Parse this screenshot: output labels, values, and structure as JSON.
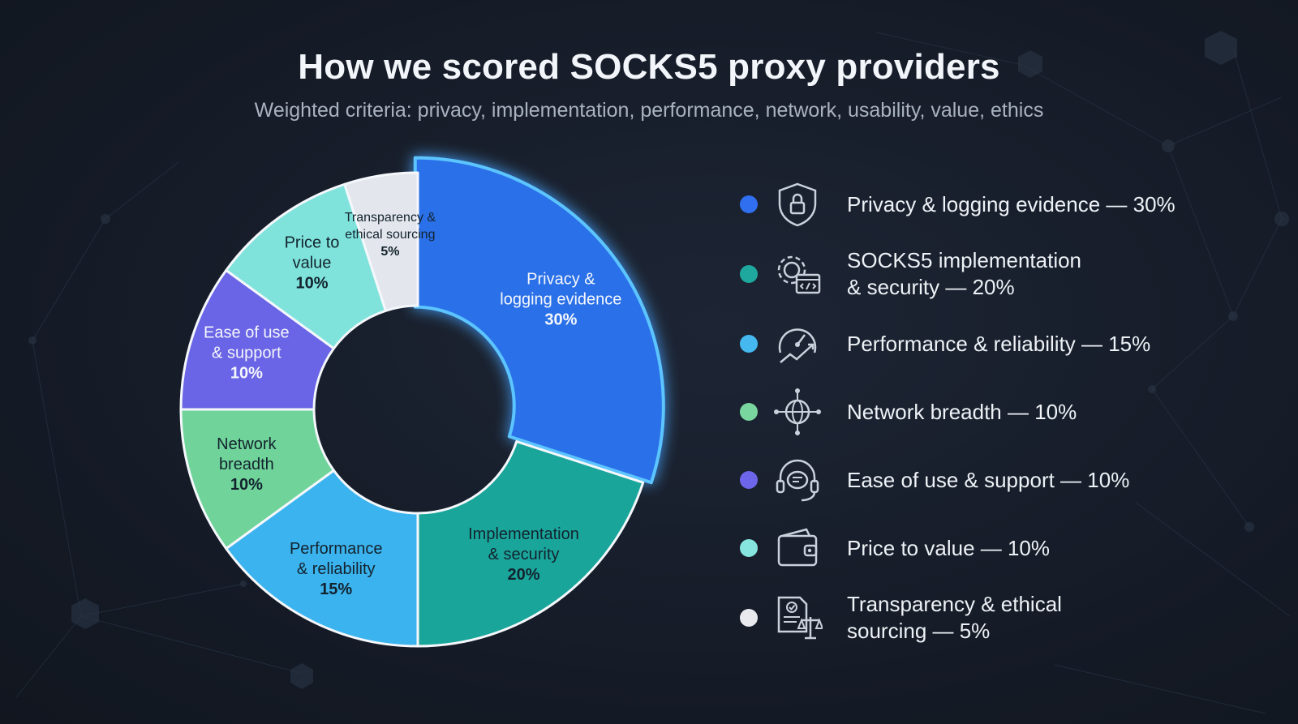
{
  "header": {
    "title": "How we scored SOCKS5 proxy providers",
    "subtitle": "Weighted criteria: privacy, implementation, performance, network, usability, value, ethics"
  },
  "chart_data": {
    "type": "pie",
    "style": "donut",
    "slices": [
      {
        "label_lines": [
          "Privacy &",
          "logging evidence"
        ],
        "value": 30,
        "value_label": "30%",
        "color": "#2a6fe8"
      },
      {
        "label_lines": [
          "Implementation",
          "& security"
        ],
        "value": 20,
        "value_label": "20%",
        "color": "#1aa59b"
      },
      {
        "label_lines": [
          "Performance",
          "& reliability"
        ],
        "value": 15,
        "value_label": "15%",
        "color": "#3bb3ee"
      },
      {
        "label_lines": [
          "Network",
          "breadth"
        ],
        "value": 10,
        "value_label": "10%",
        "color": "#6fd39a"
      },
      {
        "label_lines": [
          "Ease of use",
          "& support"
        ],
        "value": 10,
        "value_label": "10%",
        "color": "#6a64e6"
      },
      {
        "label_lines": [
          "Price to",
          "value"
        ],
        "value": 10,
        "value_label": "10%",
        "color": "#7fe3dc"
      },
      {
        "label_lines": [
          "Transparency &",
          "ethical sourcing"
        ],
        "value": 5,
        "value_label": "5%",
        "color": "#e3e6ec"
      }
    ]
  },
  "legend": {
    "items": [
      {
        "lines": [
          "Privacy & logging evidence — 30%"
        ],
        "color": "#2f6ff0",
        "icon": "shield-lock-icon"
      },
      {
        "lines": [
          "SOCKS5 implementation",
          "& security — 20%"
        ],
        "color": "#1fa89e",
        "icon": "gear-code-icon"
      },
      {
        "lines": [
          "Performance & reliability — 15%"
        ],
        "color": "#45b8f0",
        "icon": "speedometer-icon"
      },
      {
        "lines": [
          "Network breadth — 10%"
        ],
        "color": "#7ad69f",
        "icon": "globe-network-icon"
      },
      {
        "lines": [
          "Ease of use & support — 10%"
        ],
        "color": "#6e66ea",
        "icon": "headset-chat-icon"
      },
      {
        "lines": [
          "Price to value — 10%"
        ],
        "color": "#86e6df",
        "icon": "wallet-icon"
      },
      {
        "lines": [
          "Transparency & ethical",
          "sourcing — 5%"
        ],
        "color": "#e8eaee",
        "icon": "document-scale-icon"
      }
    ]
  }
}
